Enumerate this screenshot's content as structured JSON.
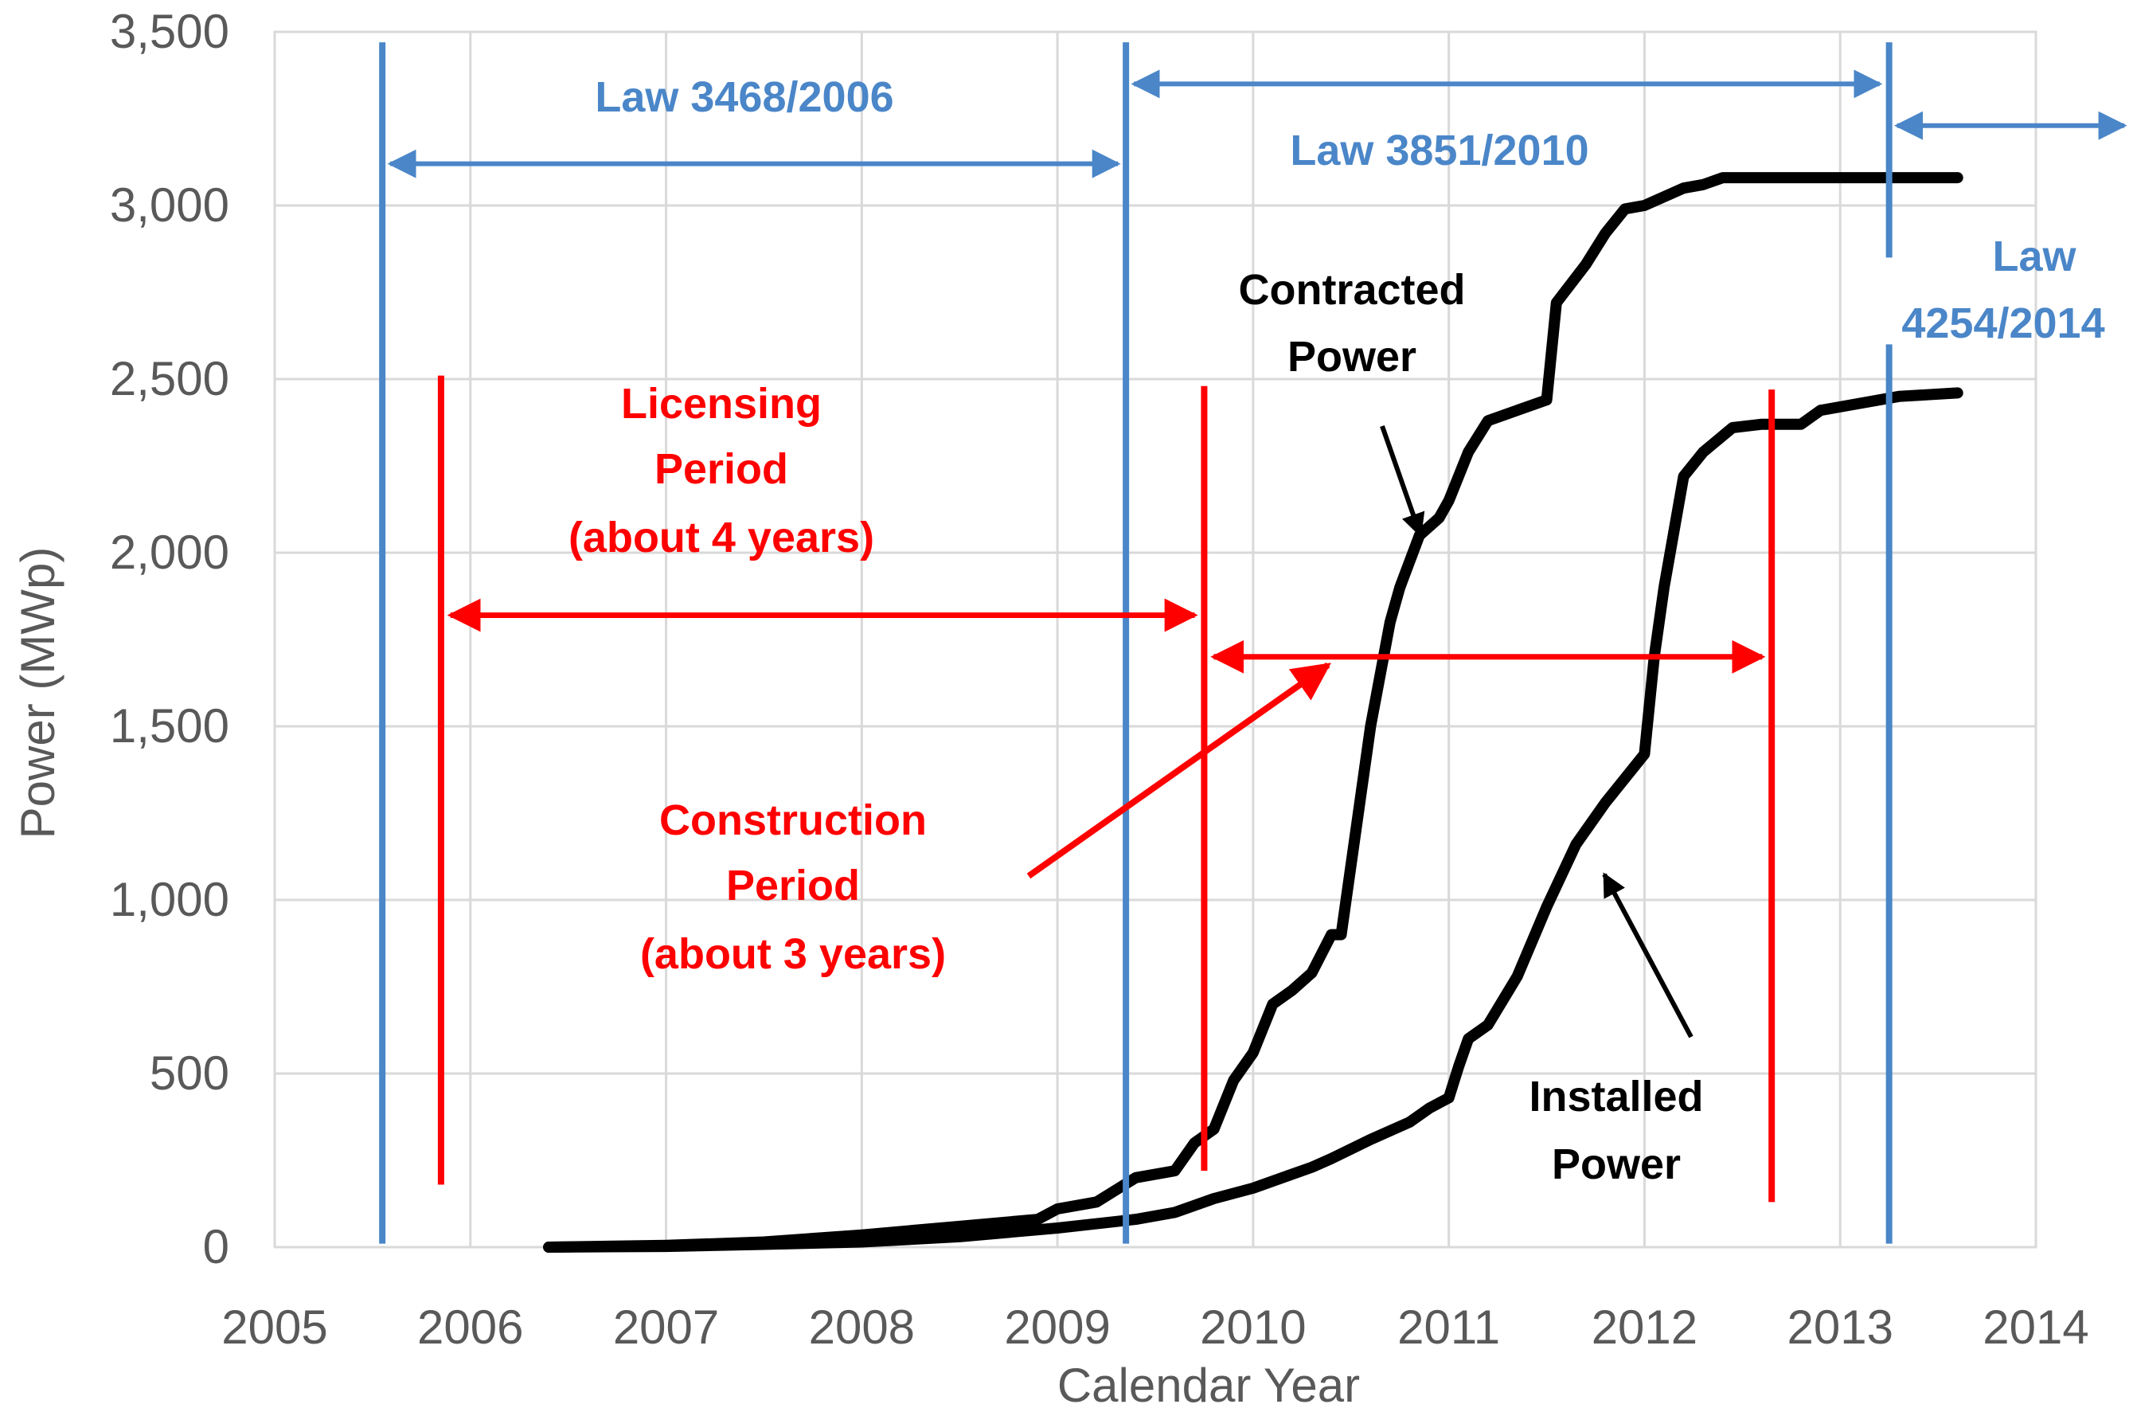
{
  "chart_data": {
    "type": "line",
    "title": "",
    "xlabel": "Calendar Year",
    "ylabel": "Power (MWp)",
    "xlim": [
      2005,
      2014
    ],
    "ylim": [
      0,
      3500
    ],
    "x_ticks": [
      2005,
      2006,
      2007,
      2008,
      2009,
      2010,
      2011,
      2012,
      2013,
      2014
    ],
    "x_tick_labels": [
      "2005",
      "2006",
      "2007",
      "2008",
      "2009",
      "2010",
      "2011",
      "2012",
      "2013",
      "2014"
    ],
    "y_ticks": [
      0,
      500,
      1000,
      1500,
      2000,
      2500,
      3000,
      3500
    ],
    "y_tick_labels": [
      "0",
      "500",
      "1,000",
      "1,500",
      "2,000",
      "2,500",
      "3,000",
      "3,500"
    ],
    "grid": true,
    "series": [
      {
        "name": "Contracted Power",
        "color": "#000000",
        "x": [
          2006.4,
          2007.0,
          2007.5,
          2008.0,
          2008.5,
          2008.9,
          2009.0,
          2009.2,
          2009.4,
          2009.6,
          2009.7,
          2009.8,
          2009.9,
          2010.0,
          2010.1,
          2010.2,
          2010.3,
          2010.4,
          2010.45,
          2010.55,
          2010.6,
          2010.7,
          2010.75,
          2010.85,
          2010.95,
          2011.0,
          2011.1,
          2011.2,
          2011.35,
          2011.5,
          2011.55,
          2011.7,
          2011.8,
          2011.9,
          2012.0,
          2012.2,
          2012.3,
          2012.4,
          2012.6,
          2013.0,
          2013.6
        ],
        "values": [
          0,
          5,
          15,
          35,
          60,
          80,
          110,
          130,
          200,
          220,
          300,
          340,
          480,
          560,
          700,
          740,
          790,
          900,
          900,
          1300,
          1500,
          1800,
          1900,
          2050,
          2100,
          2150,
          2290,
          2380,
          2410,
          2440,
          2720,
          2830,
          2920,
          2990,
          3000,
          3050,
          3060,
          3080,
          3080,
          3080,
          3080
        ]
      },
      {
        "name": "Installed Power",
        "color": "#000000",
        "x": [
          2006.4,
          2007.0,
          2007.5,
          2008.0,
          2008.5,
          2009.0,
          2009.4,
          2009.6,
          2009.8,
          2010.0,
          2010.2,
          2010.3,
          2010.4,
          2010.6,
          2010.8,
          2010.9,
          2011.0,
          2011.05,
          2011.1,
          2011.2,
          2011.35,
          2011.5,
          2011.65,
          2011.8,
          2012.0,
          2012.05,
          2012.1,
          2012.2,
          2012.3,
          2012.45,
          2012.6,
          2012.8,
          2012.9,
          2013.0,
          2013.3,
          2013.6
        ],
        "values": [
          0,
          2,
          8,
          15,
          30,
          55,
          80,
          100,
          140,
          170,
          210,
          230,
          255,
          310,
          360,
          400,
          430,
          520,
          600,
          640,
          780,
          980,
          1160,
          1280,
          1420,
          1700,
          1900,
          2220,
          2290,
          2360,
          2370,
          2370,
          2410,
          2420,
          2450,
          2460
        ]
      }
    ],
    "annotations": {
      "blue_color": "#4a86c8",
      "red_color": "#ff0000",
      "blue_lines_x": [
        2005.55,
        2009.35,
        2013.25
      ],
      "red_lines_x": [
        2005.85,
        2009.75,
        2012.65
      ],
      "law1": "Law 3468/2006",
      "law2": "Law 3851/2010",
      "law3_line1": "Law",
      "law3_line2": "4254/2014",
      "licensing_line1": "Licensing",
      "licensing_line2": "Period",
      "licensing_line3": "(about 4 years)",
      "construction_line1": "Construction",
      "construction_line2": "Period",
      "construction_line3": "(about 3 years)",
      "contracted_line1": "Contracted",
      "contracted_line2": "Power",
      "installed_line1": "Installed",
      "installed_line2": "Power"
    }
  }
}
